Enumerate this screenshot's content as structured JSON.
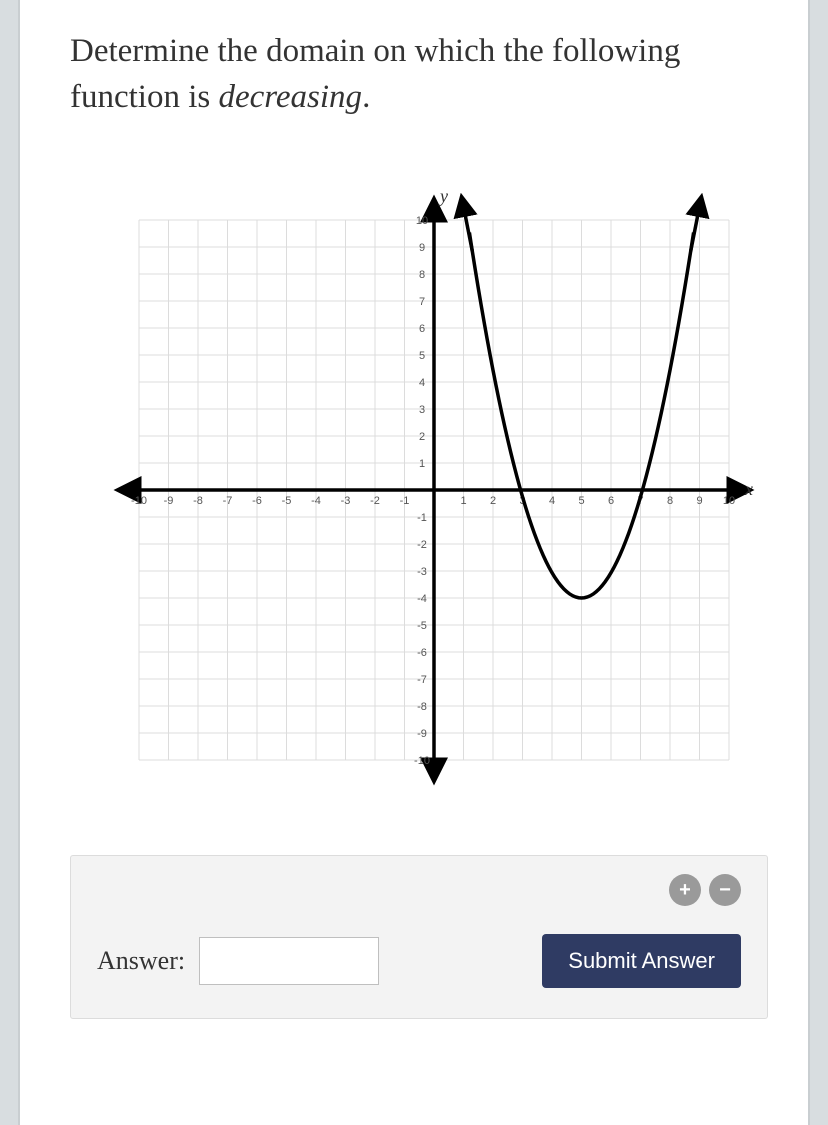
{
  "question": {
    "prefix": "Determine the domain on which the following function is ",
    "emphasis": "decreasing",
    "suffix": "."
  },
  "graph": {
    "x_axis_label": "x",
    "y_axis_label": "y",
    "xlim": [
      -10,
      10
    ],
    "ylim": [
      -10,
      10
    ],
    "xtick_step": 1,
    "ytick_step": 1,
    "xticks": [
      -10,
      -9,
      -8,
      -7,
      -6,
      -5,
      -4,
      -3,
      -2,
      -1,
      1,
      2,
      3,
      4,
      5,
      6,
      7,
      8,
      9,
      10
    ],
    "yticks": [
      -10,
      -9,
      -8,
      -7,
      -6,
      -5,
      -4,
      -3,
      -2,
      -1,
      1,
      2,
      3,
      4,
      5,
      6,
      7,
      8,
      9,
      10
    ],
    "grid_color": "#dcdcdc",
    "axis_color": "#000000",
    "background_color": "#ffffff",
    "curve": {
      "type": "parabola",
      "vertex": [
        5,
        -4
      ],
      "direction": "up",
      "left_endpoint_x": 1,
      "right_endpoint_x": 9,
      "endpoint_y": 11,
      "color": "#000000",
      "width": 3.5,
      "arrow_endpoints": true
    }
  },
  "answer_panel": {
    "label": "Answer:",
    "input_value": "",
    "submit_label": "Submit Answer",
    "plus_glyph": "+",
    "minus_glyph": "−"
  },
  "colors": {
    "page_bg": "#d8dde0",
    "card_bg": "#ffffff",
    "card_border": "#c9ced1",
    "panel_bg": "#f3f3f3",
    "panel_border": "#dcdcdc",
    "submit_bg": "#2f3b63",
    "circle_btn_bg": "#9a9a9a",
    "text": "#333333"
  }
}
